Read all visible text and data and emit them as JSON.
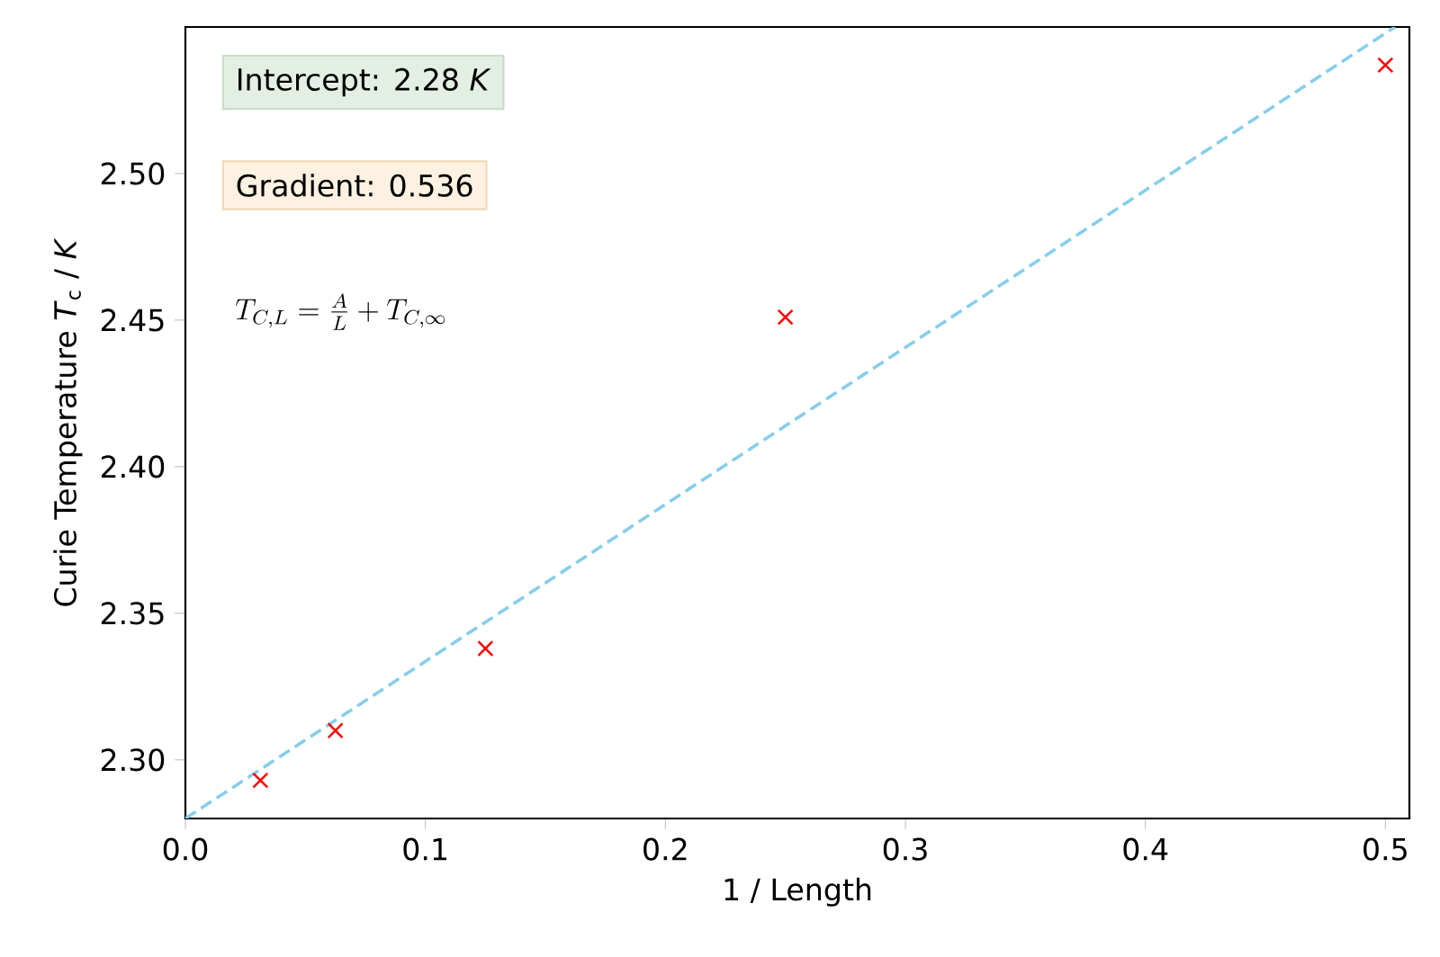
{
  "chart_data": {
    "type": "scatter",
    "xlabel": "1 / Length",
    "ylabel": "Curie Temperature *T*$_{c}$ / *K*",
    "xlim": [
      0,
      0.51
    ],
    "ylim": [
      2.28,
      2.55
    ],
    "xticks": [
      {
        "value": 0,
        "label": "0.0"
      },
      {
        "value": 0.1,
        "label": "0.1"
      },
      {
        "value": 0.2,
        "label": "0.2"
      },
      {
        "value": 0.3,
        "label": "0.3"
      },
      {
        "value": 0.4,
        "label": "0.4"
      },
      {
        "value": 0.5,
        "label": "0.5"
      }
    ],
    "yticks": [
      {
        "value": 2.3,
        "label": "2.30"
      },
      {
        "value": 2.35,
        "label": "2.35"
      },
      {
        "value": 2.4,
        "label": "2.40"
      },
      {
        "value": 2.45,
        "label": "2.45"
      },
      {
        "value": 2.5,
        "label": "2.50"
      }
    ],
    "series": [
      {
        "color": "#ff0000",
        "marker": "cross",
        "x": [
          0.03125,
          0.0625,
          0.125,
          0.25,
          0.5
        ],
        "values": [
          2.293,
          2.31,
          2.338,
          2.451,
          2.537
        ]
      },
      {
        "type": "line",
        "color": "#87ceeb",
        "line_style": "dashed",
        "x": [
          0,
          0.504
        ],
        "values": [
          2.28,
          2.55
        ]
      }
    ],
    "annotations": [
      "Intercept: 2.28 *K*",
      "Gradient: 0.536",
      "T_{C,L} = \\frac{A}{L} + T_{C,\\infty}"
    ]
  }
}
